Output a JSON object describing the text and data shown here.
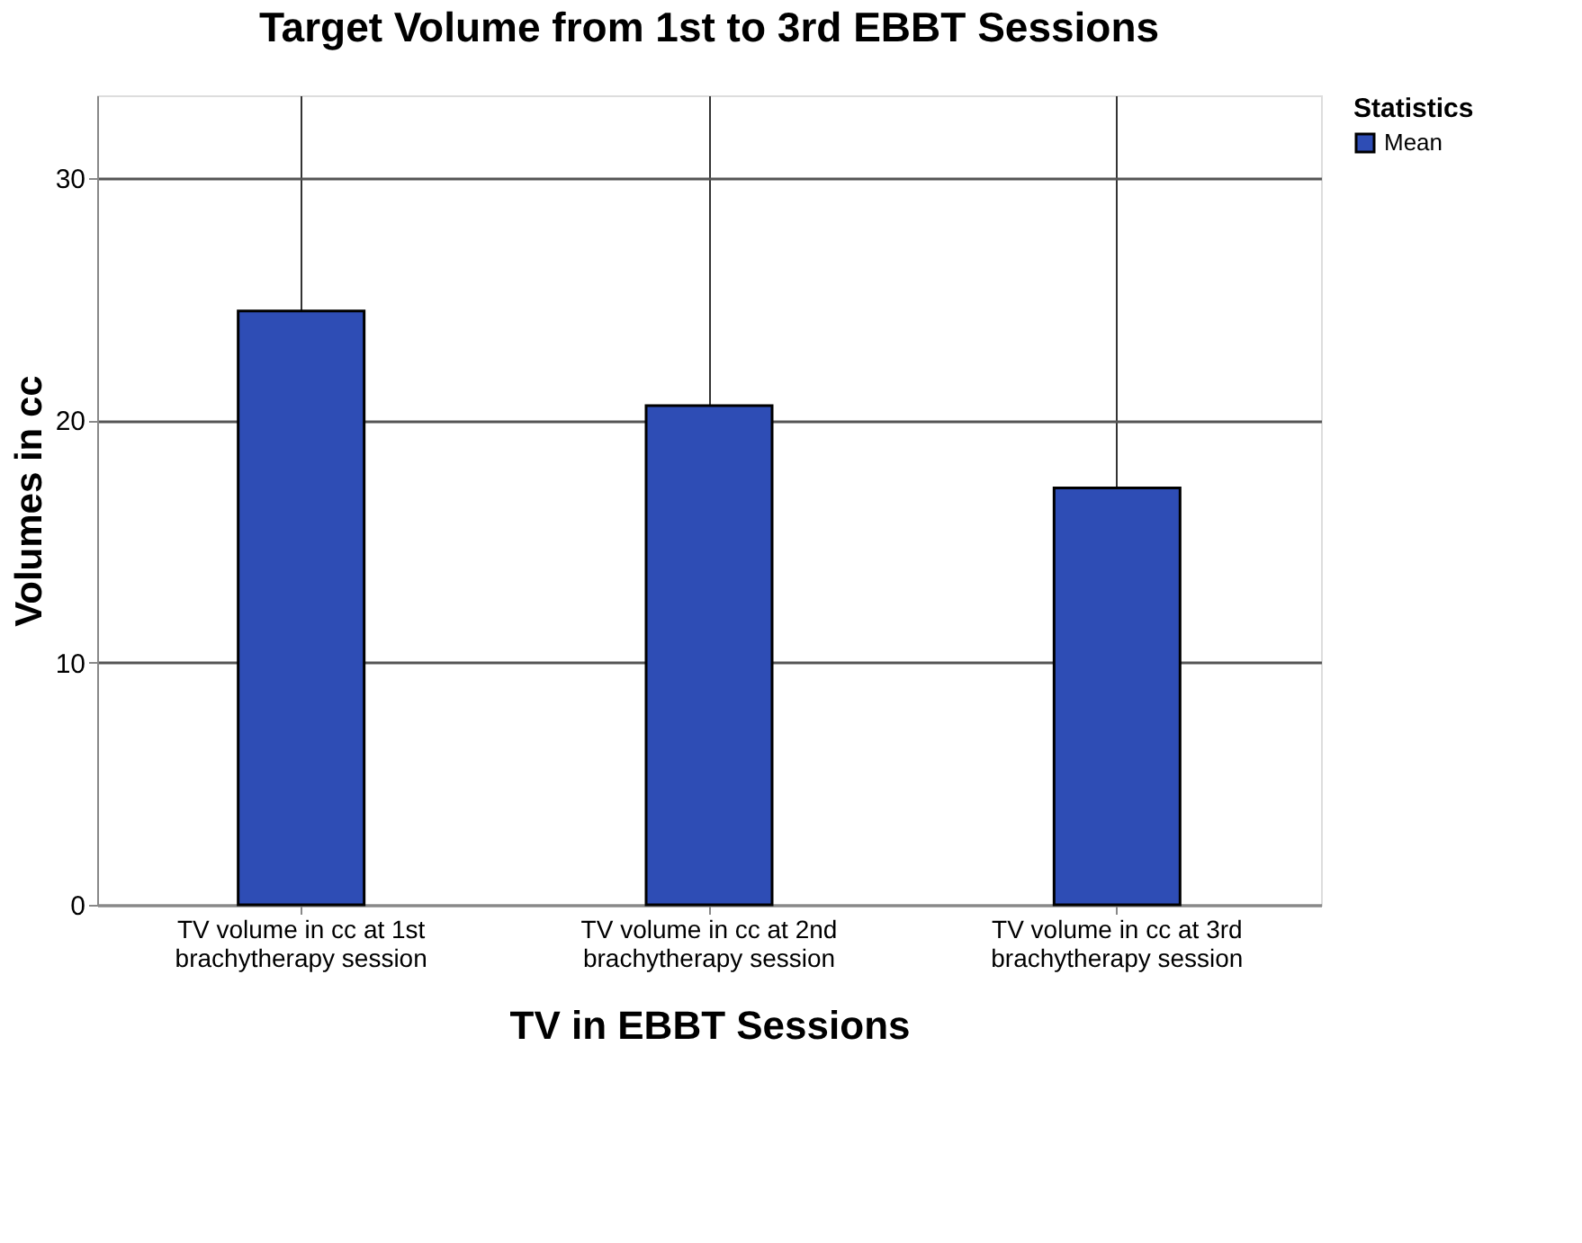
{
  "chart_data": {
    "type": "bar",
    "title": "Target Volume from 1st to 3rd EBBT Sessions",
    "xlabel": "TV in EBBT Sessions",
    "ylabel": "Volumes in cc",
    "legend_title": "Statistics",
    "categories": [
      "TV volume in cc at 1st brachytherapy session",
      "TV volume in cc at 2nd brachytherapy session",
      "TV volume in cc at 3rd brachytherapy session"
    ],
    "series": [
      {
        "name": "Mean",
        "color": "#2e4db5",
        "values": [
          24.5,
          20.6,
          17.2
        ]
      }
    ],
    "ylim": [
      0,
      33.4
    ],
    "yticks": [
      0,
      10,
      20,
      30
    ],
    "grid": true,
    "legend": "top right"
  }
}
